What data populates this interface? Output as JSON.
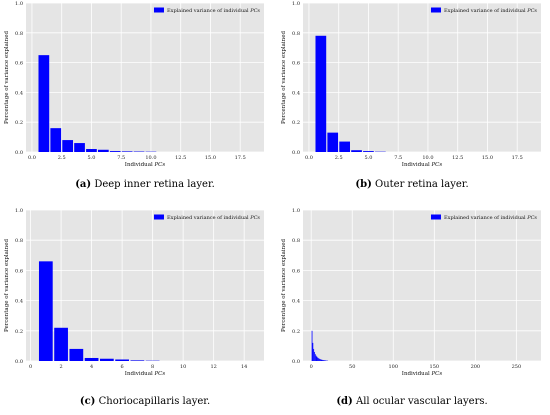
{
  "colors": {
    "bar": "#0000ff",
    "plot_bg": "#e5e5e5",
    "grid": "#ffffff"
  },
  "chart_data": [
    {
      "type": "bar",
      "caption_letter": "(a)",
      "caption_text": "Deep inner retina layer.",
      "xlabel_prefix": "Individual ",
      "xlabel_ital": "PCs",
      "ylabel": "Percentage of variance explained",
      "legend_prefix": "Explained variance of individual ",
      "legend_ital": "PCs",
      "legend_position": "top-right",
      "grid": true,
      "xlim": [
        -0.5,
        19.5
      ],
      "ylim": [
        0,
        1.0
      ],
      "xticks": [
        0.0,
        2.5,
        5.0,
        7.5,
        10.0,
        12.5,
        15.0,
        17.5
      ],
      "xtick_labels": [
        "0.0",
        "2.5",
        "5.0",
        "7.5",
        "10.0",
        "12.5",
        "15.0",
        "17.5"
      ],
      "yticks": [
        0.0,
        0.2,
        0.4,
        0.6,
        0.8,
        1.0
      ],
      "ytick_labels": [
        "0.0",
        "0.2",
        "0.4",
        "0.6",
        "0.8",
        "1.0"
      ],
      "x": [
        1,
        2,
        3,
        4,
        5,
        6,
        7,
        8,
        9,
        10
      ],
      "values": [
        0.65,
        0.16,
        0.08,
        0.06,
        0.02,
        0.015,
        0.006,
        0.004,
        0.003,
        0.002
      ]
    },
    {
      "type": "bar",
      "caption_letter": "(b)",
      "caption_text": "Outer retina layer.",
      "xlabel_prefix": "Individual ",
      "xlabel_ital": "PCs",
      "ylabel": "Percentage of variance explained",
      "legend_prefix": "Explained variance of individual ",
      "legend_ital": "PCs",
      "legend_position": "top-right",
      "grid": true,
      "xlim": [
        -0.5,
        19.5
      ],
      "ylim": [
        0,
        1.0
      ],
      "xticks": [
        0.0,
        2.5,
        5.0,
        7.5,
        10.0,
        12.5,
        15.0,
        17.5
      ],
      "xtick_labels": [
        "0.0",
        "2.5",
        "5.0",
        "7.5",
        "10.0",
        "12.5",
        "15.0",
        "17.5"
      ],
      "yticks": [
        0.0,
        0.2,
        0.4,
        0.6,
        0.8,
        1.0
      ],
      "ytick_labels": [
        "0.0",
        "0.2",
        "0.4",
        "0.6",
        "0.8",
        "1.0"
      ],
      "x": [
        1,
        2,
        3,
        4,
        5,
        6
      ],
      "values": [
        0.78,
        0.13,
        0.07,
        0.012,
        0.006,
        0.002
      ]
    },
    {
      "type": "bar",
      "caption_letter": "(c)",
      "caption_text": "Choriocapillaris layer.",
      "xlabel_prefix": "Individual ",
      "xlabel_ital": "PCs",
      "ylabel": "Percentage of variance explained",
      "legend_prefix": "Explained variance of individual ",
      "legend_ital": "PCs",
      "legend_position": "top-right",
      "grid": true,
      "xlim": [
        -0.3,
        15.3
      ],
      "ylim": [
        0,
        1.0
      ],
      "xticks": [
        0,
        2,
        4,
        6,
        8,
        10,
        12,
        14
      ],
      "xtick_labels": [
        "0",
        "2",
        "4",
        "6",
        "8",
        "10",
        "12",
        "14"
      ],
      "yticks": [
        0.0,
        0.2,
        0.4,
        0.6,
        0.8,
        1.0
      ],
      "ytick_labels": [
        "0.0",
        "0.2",
        "0.4",
        "0.6",
        "0.8",
        "1.0"
      ],
      "x": [
        1,
        2,
        3,
        4,
        5,
        6,
        7,
        8
      ],
      "values": [
        0.66,
        0.22,
        0.08,
        0.02,
        0.015,
        0.01,
        0.004,
        0.002
      ]
    },
    {
      "type": "bar",
      "caption_letter": "(d)",
      "caption_text": "All ocular vascular layers.",
      "xlabel_prefix": "Individual ",
      "xlabel_ital": "PCs",
      "ylabel": "Percentage of variance explained",
      "legend_prefix": "Explained variance of individual ",
      "legend_ital": "PCs",
      "legend_position": "top-right",
      "grid": true,
      "xlim": [
        -10,
        280
      ],
      "ylim": [
        0,
        1.0
      ],
      "xticks": [
        0,
        50,
        100,
        150,
        200,
        250
      ],
      "xtick_labels": [
        "0",
        "50",
        "100",
        "150",
        "200",
        "250"
      ],
      "yticks": [
        0.0,
        0.2,
        0.4,
        0.6,
        0.8,
        1.0
      ],
      "ytick_labels": [
        "0.0",
        "0.2",
        "0.4",
        "0.6",
        "0.8",
        "1.0"
      ],
      "x": [
        1,
        2,
        3,
        4,
        5,
        6,
        7,
        8,
        9,
        10,
        11,
        12,
        13,
        14,
        15,
        16,
        17,
        18,
        19,
        20
      ],
      "values": [
        0.2,
        0.12,
        0.08,
        0.06,
        0.045,
        0.035,
        0.028,
        0.022,
        0.018,
        0.015,
        0.012,
        0.01,
        0.008,
        0.007,
        0.006,
        0.005,
        0.004,
        0.003,
        0.002,
        0.002
      ]
    }
  ]
}
